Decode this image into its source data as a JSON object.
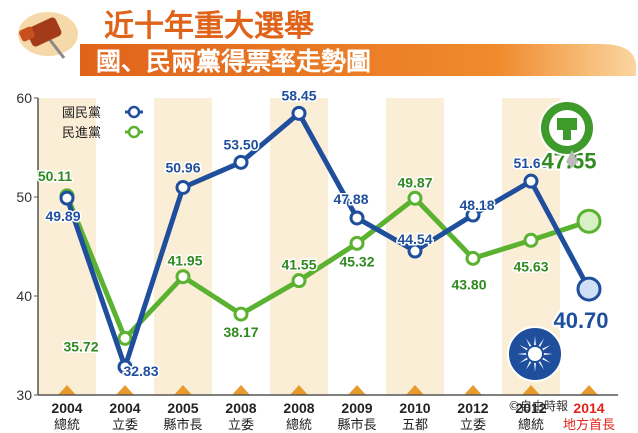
{
  "title": "近十年重大選舉",
  "subtitle": "國、民兩黨得票率走勢圖",
  "credit": "©自由時報",
  "colors": {
    "kmt": "#1f4f9c",
    "dpp": "#5ab230",
    "banner": "#e0631a",
    "title": "#e0631a",
    "highlight_label": "#e0241a",
    "column_a": "#fbeed6",
    "column_b": "#ffffff"
  },
  "chart_data": {
    "type": "line",
    "categories": [
      {
        "year": "2004",
        "name": "總統"
      },
      {
        "year": "2004",
        "name": "立委"
      },
      {
        "year": "2005",
        "name": "縣市長"
      },
      {
        "year": "2008",
        "name": "立委"
      },
      {
        "year": "2008",
        "name": "總統"
      },
      {
        "year": "2009",
        "name": "縣市長"
      },
      {
        "year": "2010",
        "name": "五都"
      },
      {
        "year": "2012",
        "name": "立委"
      },
      {
        "year": "2012",
        "name": "總統"
      },
      {
        "year": "2014",
        "name": "地方首長"
      }
    ],
    "highlight_category_index": 9,
    "series": [
      {
        "name": "國民黨",
        "color": "#1f4f9c",
        "values": [
          49.89,
          32.83,
          50.96,
          53.5,
          58.45,
          47.88,
          44.54,
          48.18,
          51.6,
          40.7
        ],
        "labels": [
          "49.89",
          "32.83",
          "50.96",
          "53.50",
          "58.45",
          "47.88",
          "44.54",
          "48.18",
          "51.60",
          "40.70"
        ]
      },
      {
        "name": "民進黨",
        "color": "#5ab230",
        "values": [
          50.11,
          35.72,
          41.95,
          38.17,
          41.55,
          45.32,
          49.87,
          43.8,
          45.63,
          47.55
        ],
        "labels": [
          "50.11",
          "35.72",
          "41.95",
          "38.17",
          "41.55",
          "45.32",
          "49.87",
          "43.80",
          "45.63",
          "47.55"
        ]
      }
    ],
    "yticks": [
      "30",
      "40",
      "50",
      "60"
    ],
    "ylim": [
      30,
      60
    ],
    "xlabel": "",
    "ylabel": "",
    "grid": false,
    "legend_position": "top-left"
  }
}
